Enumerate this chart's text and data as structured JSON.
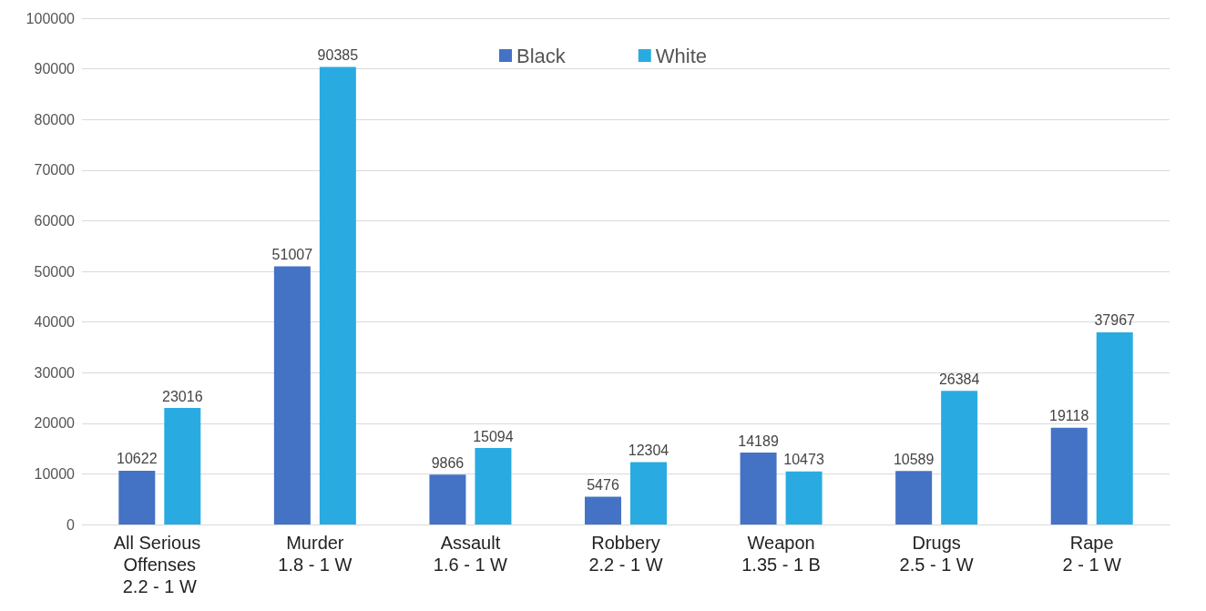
{
  "chart_data": {
    "type": "bar",
    "categories": [
      "All Serious Offenses\n2.2 - 1 W",
      "Murder\n1.8 - 1 W",
      "Assault\n1.6 - 1 W",
      "Robbery\n2.2 - 1 W",
      "Weapon\n1.35 - 1 B",
      "Drugs\n2.5 - 1 W",
      "Rape\n2 - 1 W"
    ],
    "series": [
      {
        "name": "Black",
        "color": "#4472c4",
        "values": [
          10622,
          51007,
          9866,
          5476,
          14189,
          10589,
          19118
        ]
      },
      {
        "name": "White",
        "color": "#29abe2",
        "values": [
          23016,
          90385,
          15094,
          12304,
          10473,
          26384,
          37967
        ]
      }
    ],
    "ylim": [
      0,
      100000
    ],
    "yticks": [
      0,
      10000,
      20000,
      30000,
      40000,
      50000,
      60000,
      70000,
      80000,
      90000,
      100000
    ],
    "grid": "y",
    "legend": "top",
    "data_labels": true
  }
}
